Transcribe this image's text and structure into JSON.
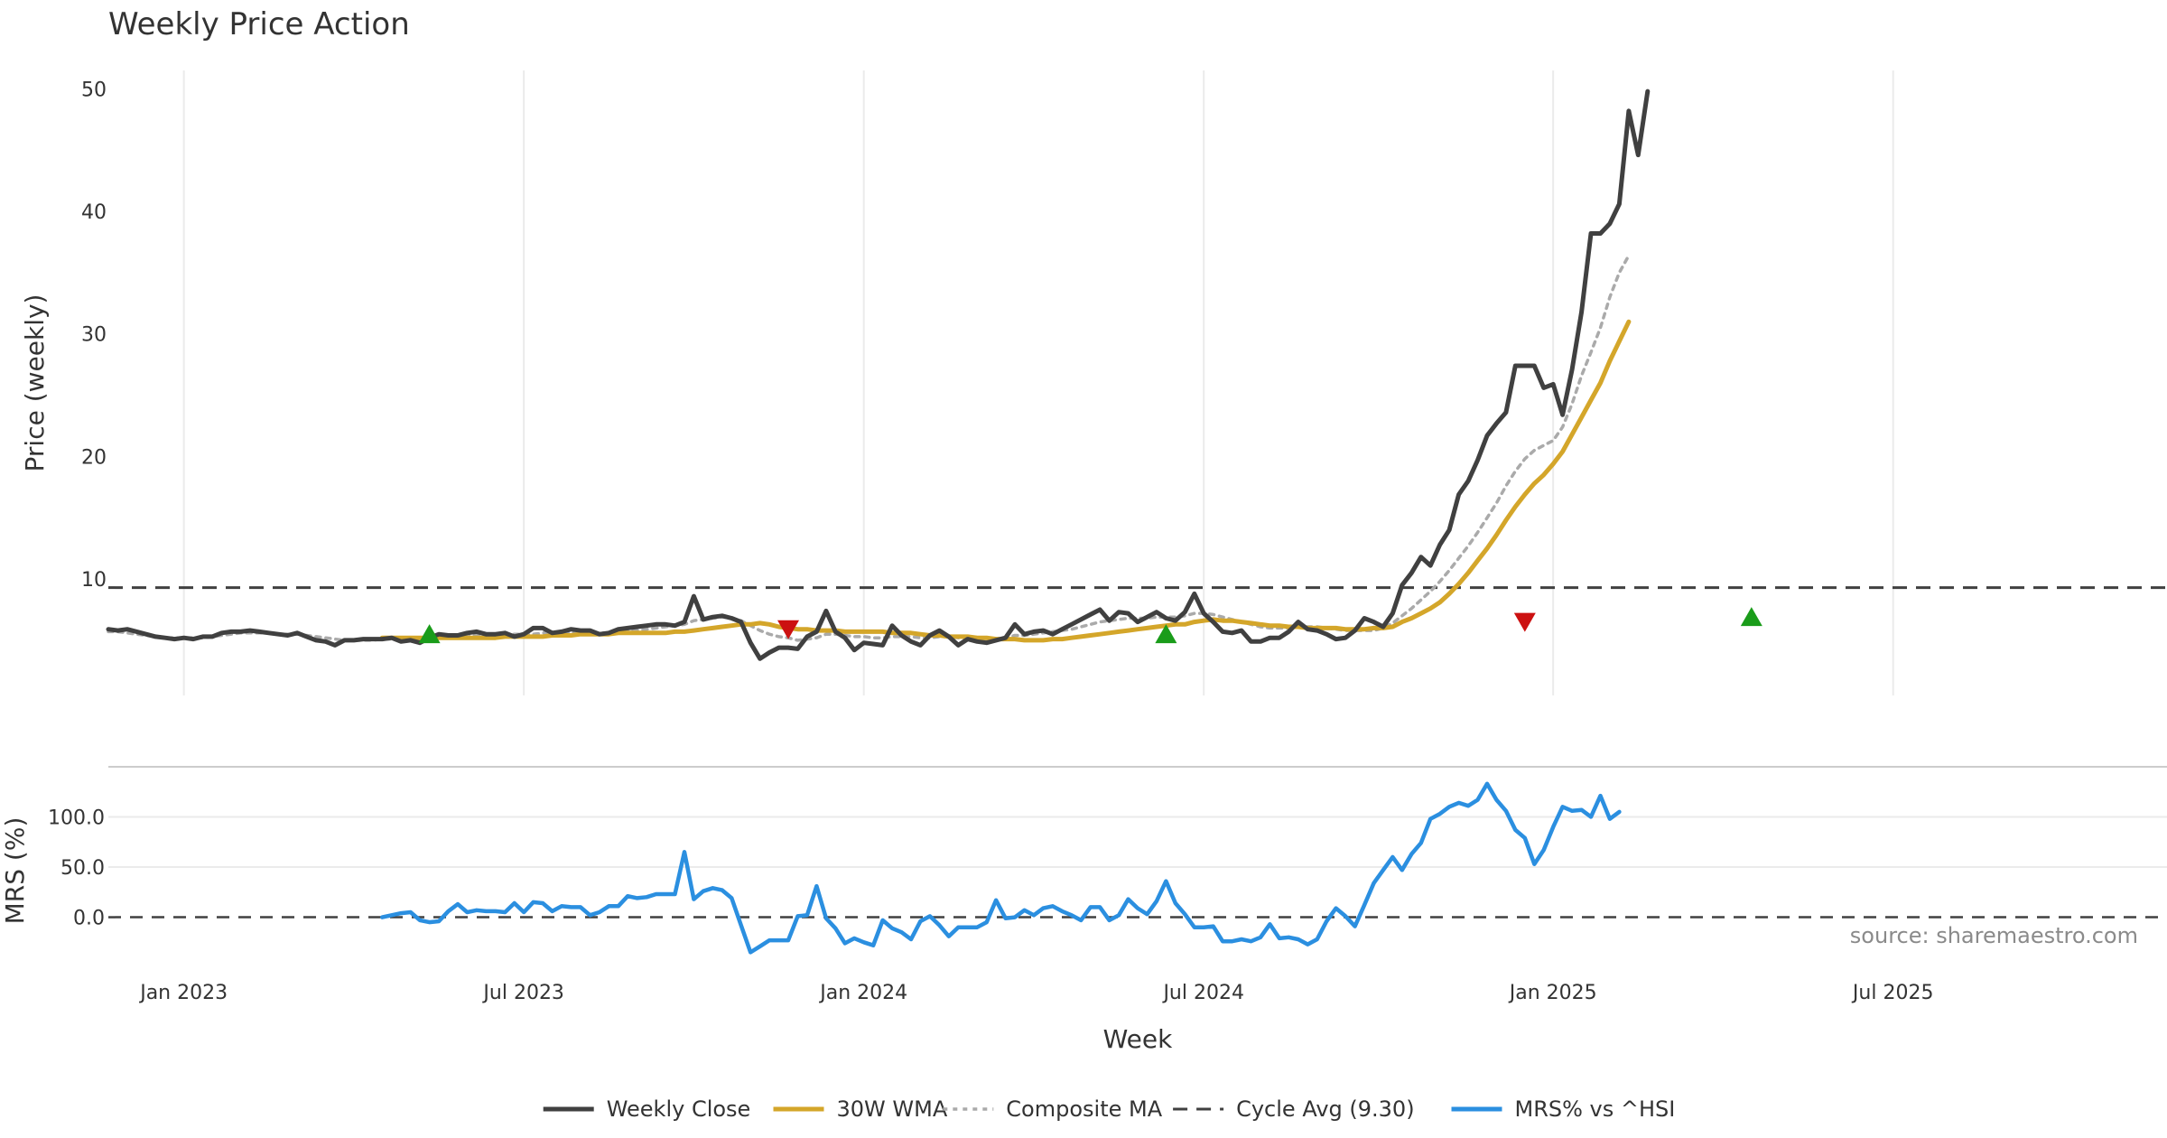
{
  "chart_data": {
    "type": "line",
    "title": "Weekly Price Action",
    "source": "source: sharemaestro.com",
    "xlabel": "Week",
    "x_ticks": [
      "Jan 2023",
      "Jul 2023",
      "Jan 2024",
      "Jul 2024",
      "Jan 2025",
      "Jul 2025"
    ],
    "x_tick_weeks": [
      8,
      44,
      80,
      116,
      153,
      189
    ],
    "x_range": [
      0,
      218
    ],
    "colors": {
      "close": "#404040",
      "wma": "#d4a62a",
      "composite": "#aaaaaa",
      "cycle": "#404040",
      "mrs": "#2b8fe0",
      "buy_signal": "#1a9c1a",
      "sell_signal": "#cc1111",
      "grid": "#ebebeb"
    },
    "price_panel": {
      "ylabel": "Price (weekly)",
      "y_ticks": [
        "10",
        "20",
        "30",
        "40",
        "50"
      ],
      "y_tick_values": [
        10,
        20,
        30,
        40,
        50
      ],
      "ylim": [
        0.5,
        51.5
      ],
      "cycle_avg": 9.3,
      "series": [
        {
          "name": "Weekly Close",
          "start": 0,
          "values": [
            5.9,
            5.8,
            5.9,
            5.7,
            5.5,
            5.3,
            5.2,
            5.1,
            5.2,
            5.1,
            5.3,
            5.3,
            5.6,
            5.7,
            5.7,
            5.8,
            5.7,
            5.6,
            5.5,
            5.4,
            5.6,
            5.3,
            5.0,
            4.9,
            4.6,
            5.0,
            5.0,
            5.1,
            5.1,
            5.1,
            5.2,
            4.9,
            5.0,
            4.8,
            5.2,
            5.5,
            5.4,
            5.4,
            5.6,
            5.7,
            5.5,
            5.5,
            5.6,
            5.3,
            5.5,
            6.0,
            6.0,
            5.6,
            5.7,
            5.9,
            5.8,
            5.8,
            5.5,
            5.6,
            5.9,
            6.0,
            6.1,
            6.2,
            6.3,
            6.3,
            6.2,
            6.5,
            8.6,
            6.7,
            6.9,
            7.0,
            6.8,
            6.5,
            4.8,
            3.5,
            4.0,
            4.4,
            4.4,
            4.3,
            5.3,
            5.7,
            7.4,
            5.7,
            5.2,
            4.2,
            4.8,
            4.7,
            4.6,
            6.2,
            5.4,
            4.9,
            4.6,
            5.4,
            5.8,
            5.3,
            4.6,
            5.1,
            4.9,
            4.8,
            5.0,
            5.2,
            6.3,
            5.5,
            5.7,
            5.8,
            5.5,
            5.9,
            6.3,
            6.7,
            7.1,
            7.5,
            6.6,
            7.3,
            7.2,
            6.5,
            6.9,
            7.3,
            6.8,
            6.6,
            7.3,
            8.8,
            7.2,
            6.5,
            5.7,
            5.6,
            5.8,
            4.9,
            4.9,
            5.2,
            5.2,
            5.7,
            6.5,
            5.9,
            5.8,
            5.5,
            5.1,
            5.2,
            5.8,
            6.8,
            6.5,
            6.1,
            7.2,
            9.5,
            10.5,
            11.8,
            11.1,
            12.8,
            14.0,
            16.9,
            18.0,
            19.7,
            21.7,
            22.7,
            23.6,
            27.4,
            27.4,
            27.4,
            25.6,
            25.9,
            23.4,
            27.1,
            31.8,
            38.2,
            38.2,
            39.0,
            40.6,
            48.2,
            44.6,
            49.8
          ]
        },
        {
          "name": "30W WMA",
          "start": 29,
          "values": [
            5.2,
            5.2,
            5.2,
            5.2,
            5.2,
            5.2,
            5.2,
            5.2,
            5.2,
            5.2,
            5.2,
            5.2,
            5.2,
            5.3,
            5.3,
            5.3,
            5.3,
            5.3,
            5.4,
            5.4,
            5.4,
            5.5,
            5.5,
            5.5,
            5.5,
            5.6,
            5.6,
            5.6,
            5.6,
            5.6,
            5.6,
            5.7,
            5.7,
            5.8,
            5.9,
            6.0,
            6.1,
            6.2,
            6.3,
            6.3,
            6.4,
            6.3,
            6.1,
            6.0,
            5.9,
            5.9,
            5.8,
            5.8,
            5.8,
            5.7,
            5.7,
            5.7,
            5.7,
            5.7,
            5.6,
            5.6,
            5.6,
            5.5,
            5.4,
            5.4,
            5.3,
            5.3,
            5.3,
            5.2,
            5.2,
            5.1,
            5.1,
            5.1,
            5.0,
            5.0,
            5.0,
            5.1,
            5.1,
            5.2,
            5.3,
            5.4,
            5.5,
            5.6,
            5.7,
            5.8,
            5.9,
            6.0,
            6.1,
            6.2,
            6.3,
            6.3,
            6.5,
            6.6,
            6.7,
            6.6,
            6.6,
            6.5,
            6.4,
            6.3,
            6.2,
            6.2,
            6.1,
            6.1,
            6.0,
            6.0,
            6.0,
            6.0,
            5.9,
            5.9,
            5.9,
            6.0,
            6.0,
            6.1,
            6.5,
            6.8,
            7.2,
            7.6,
            8.1,
            8.8,
            9.6,
            10.5,
            11.5,
            12.5,
            13.6,
            14.8,
            15.9,
            16.9,
            17.8,
            18.5,
            19.4,
            20.4,
            21.8,
            23.2,
            24.6,
            26.0,
            27.8,
            29.4,
            31.0
          ]
        },
        {
          "name": "Composite MA",
          "start": 0,
          "values": [
            5.7,
            5.7,
            5.6,
            5.5,
            5.4,
            5.3,
            5.2,
            5.2,
            5.2,
            5.2,
            5.2,
            5.3,
            5.4,
            5.5,
            5.6,
            5.6,
            5.6,
            5.6,
            5.5,
            5.5,
            5.5,
            5.4,
            5.3,
            5.2,
            5.1,
            5.0,
            5.0,
            5.0,
            5.0,
            5.1,
            5.1,
            5.1,
            5.1,
            5.1,
            5.1,
            5.2,
            5.3,
            5.3,
            5.4,
            5.4,
            5.4,
            5.5,
            5.5,
            5.5,
            5.5,
            5.5,
            5.6,
            5.6,
            5.6,
            5.6,
            5.6,
            5.6,
            5.6,
            5.6,
            5.7,
            5.8,
            5.8,
            5.9,
            6.0,
            6.1,
            6.2,
            6.3,
            6.6,
            6.7,
            6.8,
            6.9,
            6.8,
            6.6,
            6.2,
            5.8,
            5.5,
            5.3,
            5.2,
            5.0,
            5.1,
            5.2,
            5.5,
            5.5,
            5.4,
            5.3,
            5.3,
            5.2,
            5.2,
            5.3,
            5.3,
            5.3,
            5.2,
            5.2,
            5.3,
            5.3,
            5.2,
            5.2,
            5.1,
            5.1,
            5.1,
            5.2,
            5.4,
            5.4,
            5.5,
            5.6,
            5.7,
            5.8,
            5.9,
            6.1,
            6.3,
            6.5,
            6.6,
            6.7,
            6.8,
            6.8,
            6.8,
            6.9,
            6.9,
            6.9,
            7.0,
            7.2,
            7.2,
            7.1,
            6.9,
            6.7,
            6.5,
            6.3,
            6.1,
            6.0,
            6.0,
            6.0,
            6.1,
            6.1,
            6.1,
            6.0,
            5.9,
            5.8,
            5.8,
            5.8,
            5.8,
            6.0,
            6.4,
            7.0,
            7.6,
            8.3,
            9.0,
            9.8,
            10.7,
            11.7,
            12.7,
            13.8,
            15.0,
            16.2,
            17.6,
            18.8,
            19.8,
            20.5,
            20.9,
            21.3,
            22.4,
            24.3,
            26.6,
            28.5,
            30.5,
            33.0,
            35.0,
            36.4
          ]
        }
      ],
      "signals": [
        {
          "type": "buy",
          "week": 34,
          "value": 5.5
        },
        {
          "type": "sell",
          "week": 72,
          "value": 5.9
        },
        {
          "type": "buy",
          "week": 112,
          "value": 5.5
        },
        {
          "type": "sell",
          "week": 150,
          "value": 6.5
        },
        {
          "type": "buy",
          "week": 174,
          "value": 6.9
        }
      ]
    },
    "mrs_panel": {
      "ylabel": "MRS (%)",
      "y_ticks": [
        "0.0",
        "50.0",
        "100.0"
      ],
      "y_tick_values": [
        0,
        50,
        100
      ],
      "ylim": [
        -40,
        140
      ],
      "series": [
        {
          "name": "MRS% vs ^HSI",
          "start": 29,
          "values": [
            0,
            2,
            4,
            5,
            -3,
            -5,
            -4,
            6,
            13,
            5,
            7,
            6,
            6,
            5,
            14,
            5,
            15,
            14,
            6,
            11,
            10,
            10,
            2,
            5,
            11,
            11,
            21,
            19,
            20,
            23,
            23,
            23,
            65,
            18,
            26,
            29,
            27,
            19,
            -8,
            -35,
            -29,
            -23,
            -23,
            -23,
            1,
            2,
            31,
            -1,
            -11,
            -26,
            -21,
            -25,
            -28,
            -3,
            -11,
            -15,
            -22,
            -4,
            1,
            -8,
            -19,
            -10,
            -10,
            -10,
            -5,
            17,
            -1,
            0,
            7,
            2,
            9,
            11,
            6,
            2,
            -3,
            10,
            10,
            -3,
            2,
            18,
            9,
            3,
            16,
            36,
            14,
            3,
            -10,
            -10,
            -9,
            -24,
            -24,
            -22,
            -24,
            -20,
            -7,
            -21,
            -20,
            -22,
            -27,
            -22,
            -4,
            9,
            1,
            -9,
            12,
            34,
            47,
            60,
            47,
            63,
            74,
            98,
            103,
            110,
            114,
            111,
            117,
            133,
            117,
            106,
            87,
            79,
            53,
            67,
            90,
            110,
            106,
            107,
            100,
            121,
            98,
            105
          ]
        }
      ]
    },
    "legend": [
      {
        "key": "close",
        "label": "Weekly Close"
      },
      {
        "key": "wma",
        "label": "30W WMA"
      },
      {
        "key": "composite",
        "label": "Composite MA"
      },
      {
        "key": "cycle",
        "label": "Cycle Avg (9.30)"
      },
      {
        "key": "mrs",
        "label": "MRS% vs ^HSI"
      }
    ]
  }
}
